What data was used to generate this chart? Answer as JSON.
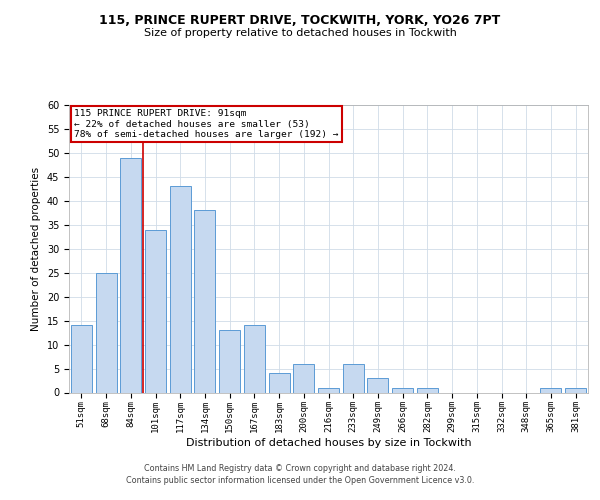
{
  "title_line1": "115, PRINCE RUPERT DRIVE, TOCKWITH, YORK, YO26 7PT",
  "title_line2": "Size of property relative to detached houses in Tockwith",
  "xlabel": "Distribution of detached houses by size in Tockwith",
  "ylabel": "Number of detached properties",
  "categories": [
    "51sqm",
    "68sqm",
    "84sqm",
    "101sqm",
    "117sqm",
    "134sqm",
    "150sqm",
    "167sqm",
    "183sqm",
    "200sqm",
    "216sqm",
    "233sqm",
    "249sqm",
    "266sqm",
    "282sqm",
    "299sqm",
    "315sqm",
    "332sqm",
    "348sqm",
    "365sqm",
    "381sqm"
  ],
  "values": [
    14,
    25,
    49,
    34,
    43,
    38,
    13,
    14,
    4,
    6,
    1,
    6,
    3,
    1,
    1,
    0,
    0,
    0,
    0,
    1,
    1
  ],
  "bar_color": "#c6d9f0",
  "bar_edge_color": "#5b9bd5",
  "vline_x": 2.5,
  "vline_color": "#cc0000",
  "annotation_text": "115 PRINCE RUPERT DRIVE: 91sqm\n← 22% of detached houses are smaller (53)\n78% of semi-detached houses are larger (192) →",
  "annotation_box_color": "#ffffff",
  "annotation_box_edge_color": "#cc0000",
  "ylim": [
    0,
    60
  ],
  "yticks": [
    0,
    5,
    10,
    15,
    20,
    25,
    30,
    35,
    40,
    45,
    50,
    55,
    60
  ],
  "footer_line1": "Contains HM Land Registry data © Crown copyright and database right 2024.",
  "footer_line2": "Contains public sector information licensed under the Open Government Licence v3.0.",
  "background_color": "#ffffff",
  "grid_color": "#d0dce8"
}
